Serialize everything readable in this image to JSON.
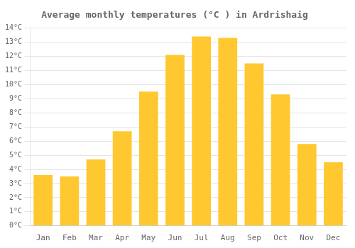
{
  "chart_data": {
    "type": "bar",
    "title": "Average monthly temperatures (°C ) in Ardrishaig",
    "categories": [
      "Jan",
      "Feb",
      "Mar",
      "Apr",
      "May",
      "Jun",
      "Jul",
      "Aug",
      "Sep",
      "Oct",
      "Nov",
      "Dec"
    ],
    "values": [
      3.6,
      3.5,
      4.7,
      6.7,
      9.5,
      12.1,
      13.4,
      13.3,
      11.5,
      9.3,
      5.8,
      4.5
    ],
    "color": "#FFC830",
    "ylim": [
      0,
      14
    ],
    "yticks": [
      {
        "value": 0,
        "label": "0°C"
      },
      {
        "value": 1,
        "label": "1°C"
      },
      {
        "value": 2,
        "label": "2°C"
      },
      {
        "value": 3,
        "label": "3°C"
      },
      {
        "value": 4,
        "label": "4°C"
      },
      {
        "value": 5,
        "label": "5°C"
      },
      {
        "value": 6,
        "label": "6°C"
      },
      {
        "value": 7,
        "label": "7°C"
      },
      {
        "value": 8,
        "label": "8°C"
      },
      {
        "value": 9,
        "label": "9°C"
      },
      {
        "value": 10,
        "label": "10°C"
      },
      {
        "value": 11,
        "label": "11°C"
      },
      {
        "value": 12,
        "label": "12°C"
      },
      {
        "value": 13,
        "label": "13°C"
      },
      {
        "value": 14,
        "label": "14°C"
      }
    ],
    "grid": true
  }
}
